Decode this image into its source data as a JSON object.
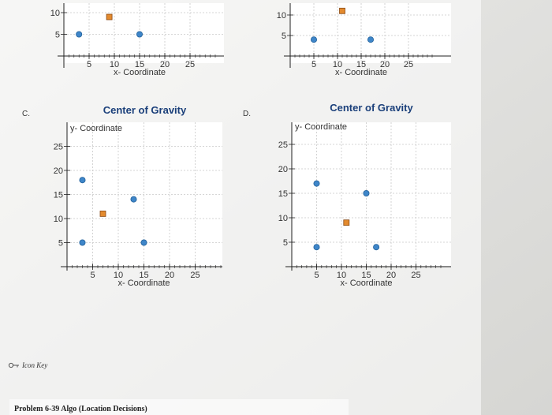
{
  "options": [
    {
      "id": "A",
      "label": ""
    },
    {
      "id": "B",
      "label": ""
    },
    {
      "id": "C",
      "label": "C."
    },
    {
      "id": "D",
      "label": "D."
    }
  ],
  "icon_key": {
    "label": "Icon Key",
    "icon": "key-icon"
  },
  "footer": {
    "text": "Problem 6-39 Algo (Location Decisions)"
  },
  "colors": {
    "circle": "#3f86c9",
    "square": "#e38a2e",
    "title": "#1a3f7a"
  },
  "chart_data": [
    {
      "type": "scatter",
      "id": "A",
      "title": "",
      "xlabel": "x- Coordinate",
      "ylabel": "",
      "xticks": [
        5,
        10,
        15,
        20,
        25
      ],
      "yticks": [
        5,
        10
      ],
      "xlim": [
        0,
        30
      ],
      "ylim": [
        0,
        12
      ],
      "series": [
        {
          "marker": "circle",
          "points": [
            {
              "x": 3,
              "y": 5
            },
            {
              "x": 15,
              "y": 5
            }
          ]
        },
        {
          "marker": "square",
          "points": [
            {
              "x": 9,
              "y": 9
            }
          ]
        }
      ]
    },
    {
      "type": "scatter",
      "id": "B",
      "title": "",
      "xlabel": "x- Coordinate",
      "ylabel": "",
      "xticks": [
        5,
        10,
        15,
        20,
        25
      ],
      "yticks": [
        5,
        10
      ],
      "xlim": [
        0,
        30
      ],
      "ylim": [
        0,
        12
      ],
      "series": [
        {
          "marker": "circle",
          "points": [
            {
              "x": 5,
              "y": 4
            },
            {
              "x": 17,
              "y": 4
            }
          ]
        },
        {
          "marker": "square",
          "points": [
            {
              "x": 11,
              "y": 11
            }
          ]
        }
      ]
    },
    {
      "type": "scatter",
      "id": "C",
      "title": "Center of Gravity",
      "xlabel": "x- Coordinate",
      "ylabel": "y- Coordinate",
      "xticks": [
        5,
        10,
        15,
        20,
        25
      ],
      "yticks": [
        5,
        10,
        15,
        20,
        25
      ],
      "xlim": [
        0,
        30
      ],
      "ylim": [
        0,
        30
      ],
      "series": [
        {
          "marker": "circle",
          "points": [
            {
              "x": 3,
              "y": 18
            },
            {
              "x": 13,
              "y": 14
            },
            {
              "x": 3,
              "y": 5
            },
            {
              "x": 15,
              "y": 5
            }
          ]
        },
        {
          "marker": "square",
          "points": [
            {
              "x": 7,
              "y": 11
            }
          ]
        }
      ]
    },
    {
      "type": "scatter",
      "id": "D",
      "title": "Center of Gravity",
      "xlabel": "x- Coordinate",
      "ylabel": "y- Coordinate",
      "xticks": [
        5,
        10,
        15,
        20,
        25
      ],
      "yticks": [
        5,
        10,
        15,
        20,
        25
      ],
      "xlim": [
        0,
        30
      ],
      "ylim": [
        0,
        30
      ],
      "series": [
        {
          "marker": "circle",
          "points": [
            {
              "x": 5,
              "y": 17
            },
            {
              "x": 15,
              "y": 15
            },
            {
              "x": 5,
              "y": 4
            },
            {
              "x": 17,
              "y": 4
            }
          ]
        },
        {
          "marker": "square",
          "points": [
            {
              "x": 11,
              "y": 9
            }
          ]
        }
      ]
    }
  ]
}
